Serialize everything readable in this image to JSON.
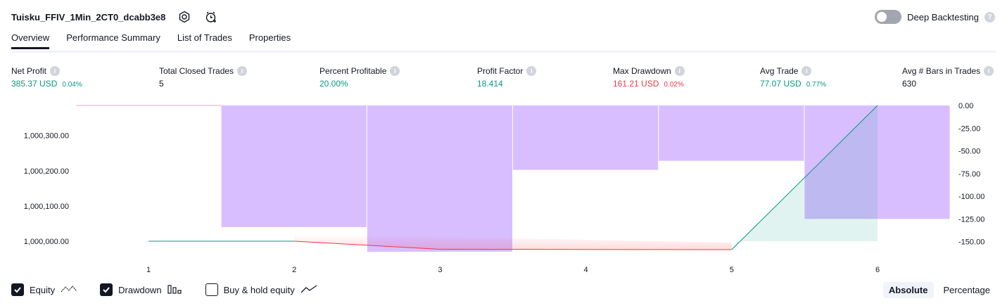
{
  "header": {
    "strategy_title": "Tuisku_FFIV_1Min_2CT0_dcabb3e8",
    "deep_backtesting_label": "Deep Backtesting",
    "help_glyph": "?",
    "icons": [
      "settings-icon",
      "alert-add-icon"
    ]
  },
  "tabs": [
    {
      "label": "Overview",
      "active": true
    },
    {
      "label": "Performance Summary",
      "active": false
    },
    {
      "label": "List of Trades",
      "active": false
    },
    {
      "label": "Properties",
      "active": false
    }
  ],
  "metrics": [
    {
      "label": "Net Profit",
      "value": "385.37 USD",
      "pct": "0.04%",
      "color": "green"
    },
    {
      "label": "Total Closed Trades",
      "value": "5",
      "pct": "",
      "color": "dark"
    },
    {
      "label": "Percent Profitable",
      "value": "20.00%",
      "pct": "",
      "color": "green"
    },
    {
      "label": "Profit Factor",
      "value": "18.414",
      "pct": "",
      "color": "green"
    },
    {
      "label": "Max Drawdown",
      "value": "161.21 USD",
      "pct": "0.02%",
      "color": "red"
    },
    {
      "label": "Avg Trade",
      "value": "77.07 USD",
      "pct": "0.77%",
      "color": "green"
    },
    {
      "label": "Avg # Bars in Trades",
      "value": "630",
      "pct": "",
      "color": "dark"
    }
  ],
  "info_glyph": "i",
  "chart_data": {
    "type": "line",
    "x": [
      1,
      2,
      3,
      4,
      5,
      6
    ],
    "x_tick_labels": [
      "1",
      "2",
      "3",
      "4",
      "5",
      "6"
    ],
    "left_axis_ticks": [
      "1,000,000.00",
      "1,000,100.00",
      "1,000,200.00",
      "1,000,300.00"
    ],
    "right_axis_ticks": [
      "0.00",
      "-25.00",
      "-50.00",
      "-75.00",
      "-100.00",
      "-125.00",
      "-150.00"
    ],
    "series": [
      {
        "name": "Equity",
        "type": "line",
        "x": [
          1,
          2,
          3,
          5,
          6
        ],
        "values": [
          1000000.0,
          1000000.0,
          999977.0,
          999976.0,
          1000385.37
        ]
      },
      {
        "name": "Drawdown",
        "type": "bar",
        "x": [
          1.5,
          2.5,
          3.5,
          4.5,
          5.5
        ],
        "values": [
          -134,
          -161.21,
          -71,
          -61,
          -125
        ]
      }
    ],
    "ylim_left": [
      999970,
      1000385.37
    ],
    "ylim_right": [
      -161.21,
      0
    ],
    "legend": "bottom-left",
    "colors": {
      "equity_up": "#089981",
      "equity_down": "#f23645",
      "drawdown": "#d1b3ff"
    }
  },
  "legend_items": [
    {
      "label": "Equity",
      "checked": true,
      "icon": "equity-line-icon"
    },
    {
      "label": "Drawdown",
      "checked": true,
      "icon": "drawdown-bars-icon"
    },
    {
      "label": "Buy & hold equity",
      "checked": false,
      "icon": "buy-hold-line-icon"
    }
  ],
  "modes": [
    {
      "label": "Absolute",
      "active": true
    },
    {
      "label": "Percentage",
      "active": false
    }
  ]
}
